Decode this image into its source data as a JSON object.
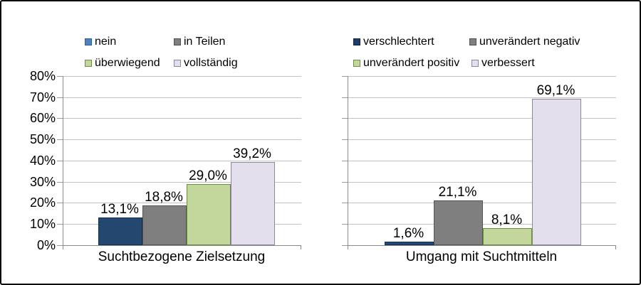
{
  "frame": {
    "background_color": "#ffffff",
    "border_color": "#0a0a0a"
  },
  "chart_data": [
    {
      "type": "bar",
      "categories": [
        "nein",
        "in Teilen",
        "überwiegend",
        "vollständig"
      ],
      "values": [
        13.1,
        18.8,
        29.0,
        39.2
      ],
      "value_labels": [
        "13,1%",
        "18,8%",
        "29,0%",
        "39,2%"
      ],
      "xlabel": "Suchtbezogene Zielsetzung",
      "ylim": [
        0,
        80
      ],
      "yticks": [
        "0%",
        "10%",
        "20%",
        "30%",
        "40%",
        "50%",
        "60%",
        "70%",
        "80%"
      ],
      "grid": true,
      "legend_position": "top",
      "show_y_tick_labels": true,
      "series_colors": [
        "#24476F",
        "#7F7F7F",
        "#C3D69B",
        "#E4DFEC"
      ],
      "series_border_colors": [
        "#16304C",
        "#555555",
        "#6f8a44",
        "#8b8699"
      ],
      "legend_swatch_colors": [
        "#4F81BD",
        "#7F7F7F",
        "#C3D69B",
        "#E4DFEC"
      ],
      "legend_swatch_border_colors": [
        "#2d5e96",
        "#4f4f4f",
        "#6f8a44",
        "#8b8699"
      ]
    },
    {
      "type": "bar",
      "categories": [
        "verschlechtert",
        "unverändert negativ",
        "unverändert positiv",
        "verbessert"
      ],
      "values": [
        1.6,
        21.1,
        8.1,
        69.1
      ],
      "value_labels": [
        "1,6%",
        "21,1%",
        "8,1%",
        "69,1%"
      ],
      "xlabel": "Umgang mit Suchtmitteln",
      "ylim": [
        0,
        80
      ],
      "yticks": [
        "0%",
        "10%",
        "20%",
        "30%",
        "40%",
        "50%",
        "60%",
        "70%",
        "80%"
      ],
      "grid": true,
      "legend_position": "top",
      "show_y_tick_labels": false,
      "series_colors": [
        "#24476F",
        "#7F7F7F",
        "#C3D69B",
        "#E4DFEC"
      ],
      "series_border_colors": [
        "#16304C",
        "#555555",
        "#6f8a44",
        "#8b8699"
      ],
      "legend_swatch_colors": [
        "#1F3D66",
        "#7F7F7F",
        "#C3D69B",
        "#E4DFEC"
      ],
      "legend_swatch_border_colors": [
        "#10233d",
        "#4f4f4f",
        "#6f8a44",
        "#8b8699"
      ]
    }
  ],
  "text_color": "#000000",
  "gridline_color": "#c3c3c3",
  "axis_color": "#8a8a8a"
}
